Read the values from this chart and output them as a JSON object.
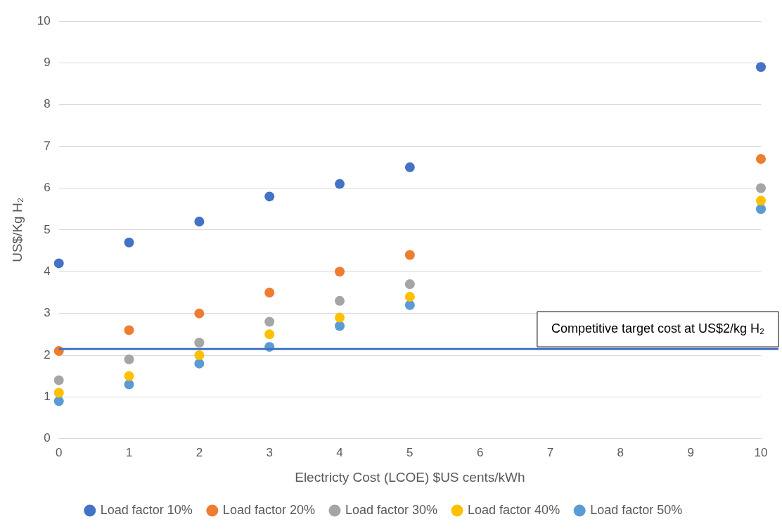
{
  "chart_data": {
    "type": "scatter",
    "xlabel": "Electricty Cost (LCOE) $US cents/kWh",
    "ylabel": "US$/Kg H₂",
    "categories": [
      "0",
      "1",
      "2",
      "3",
      "4",
      "5",
      "6",
      "7",
      "8",
      "9",
      "10"
    ],
    "series": [
      {
        "name": "Load factor 10%",
        "color": "#4472c4",
        "values": [
          4.2,
          4.7,
          5.2,
          5.8,
          6.1,
          6.5,
          null,
          null,
          null,
          null,
          8.9
        ]
      },
      {
        "name": "Load factor 20%",
        "color": "#ed7d31",
        "values": [
          2.1,
          2.6,
          3.0,
          3.5,
          4.0,
          4.4,
          null,
          null,
          null,
          null,
          6.7
        ]
      },
      {
        "name": "Load factor 30%",
        "color": "#a5a5a5",
        "values": [
          1.4,
          1.9,
          2.3,
          2.8,
          3.3,
          3.7,
          null,
          null,
          null,
          null,
          6.0
        ]
      },
      {
        "name": "Load factor 40%",
        "color": "#ffc000",
        "values": [
          1.1,
          1.5,
          2.0,
          2.5,
          2.9,
          3.4,
          null,
          null,
          null,
          null,
          5.7
        ]
      },
      {
        "name": "Load factor 50%",
        "color": "#5b9bd5",
        "values": [
          0.9,
          1.3,
          1.8,
          2.2,
          2.7,
          3.2,
          null,
          null,
          null,
          null,
          5.5
        ]
      }
    ],
    "ylim": [
      0,
      10
    ],
    "yticks": [
      0,
      1,
      2,
      3,
      4,
      5,
      6,
      7,
      8,
      9,
      10
    ],
    "ref_lines": [
      {
        "axis": "y",
        "value": 2.15,
        "label": "Competitive target cost at US$2/kg H₂",
        "color": "#4472c4"
      }
    ],
    "grid": "y",
    "legend": "bottom",
    "marker": "circle"
  }
}
